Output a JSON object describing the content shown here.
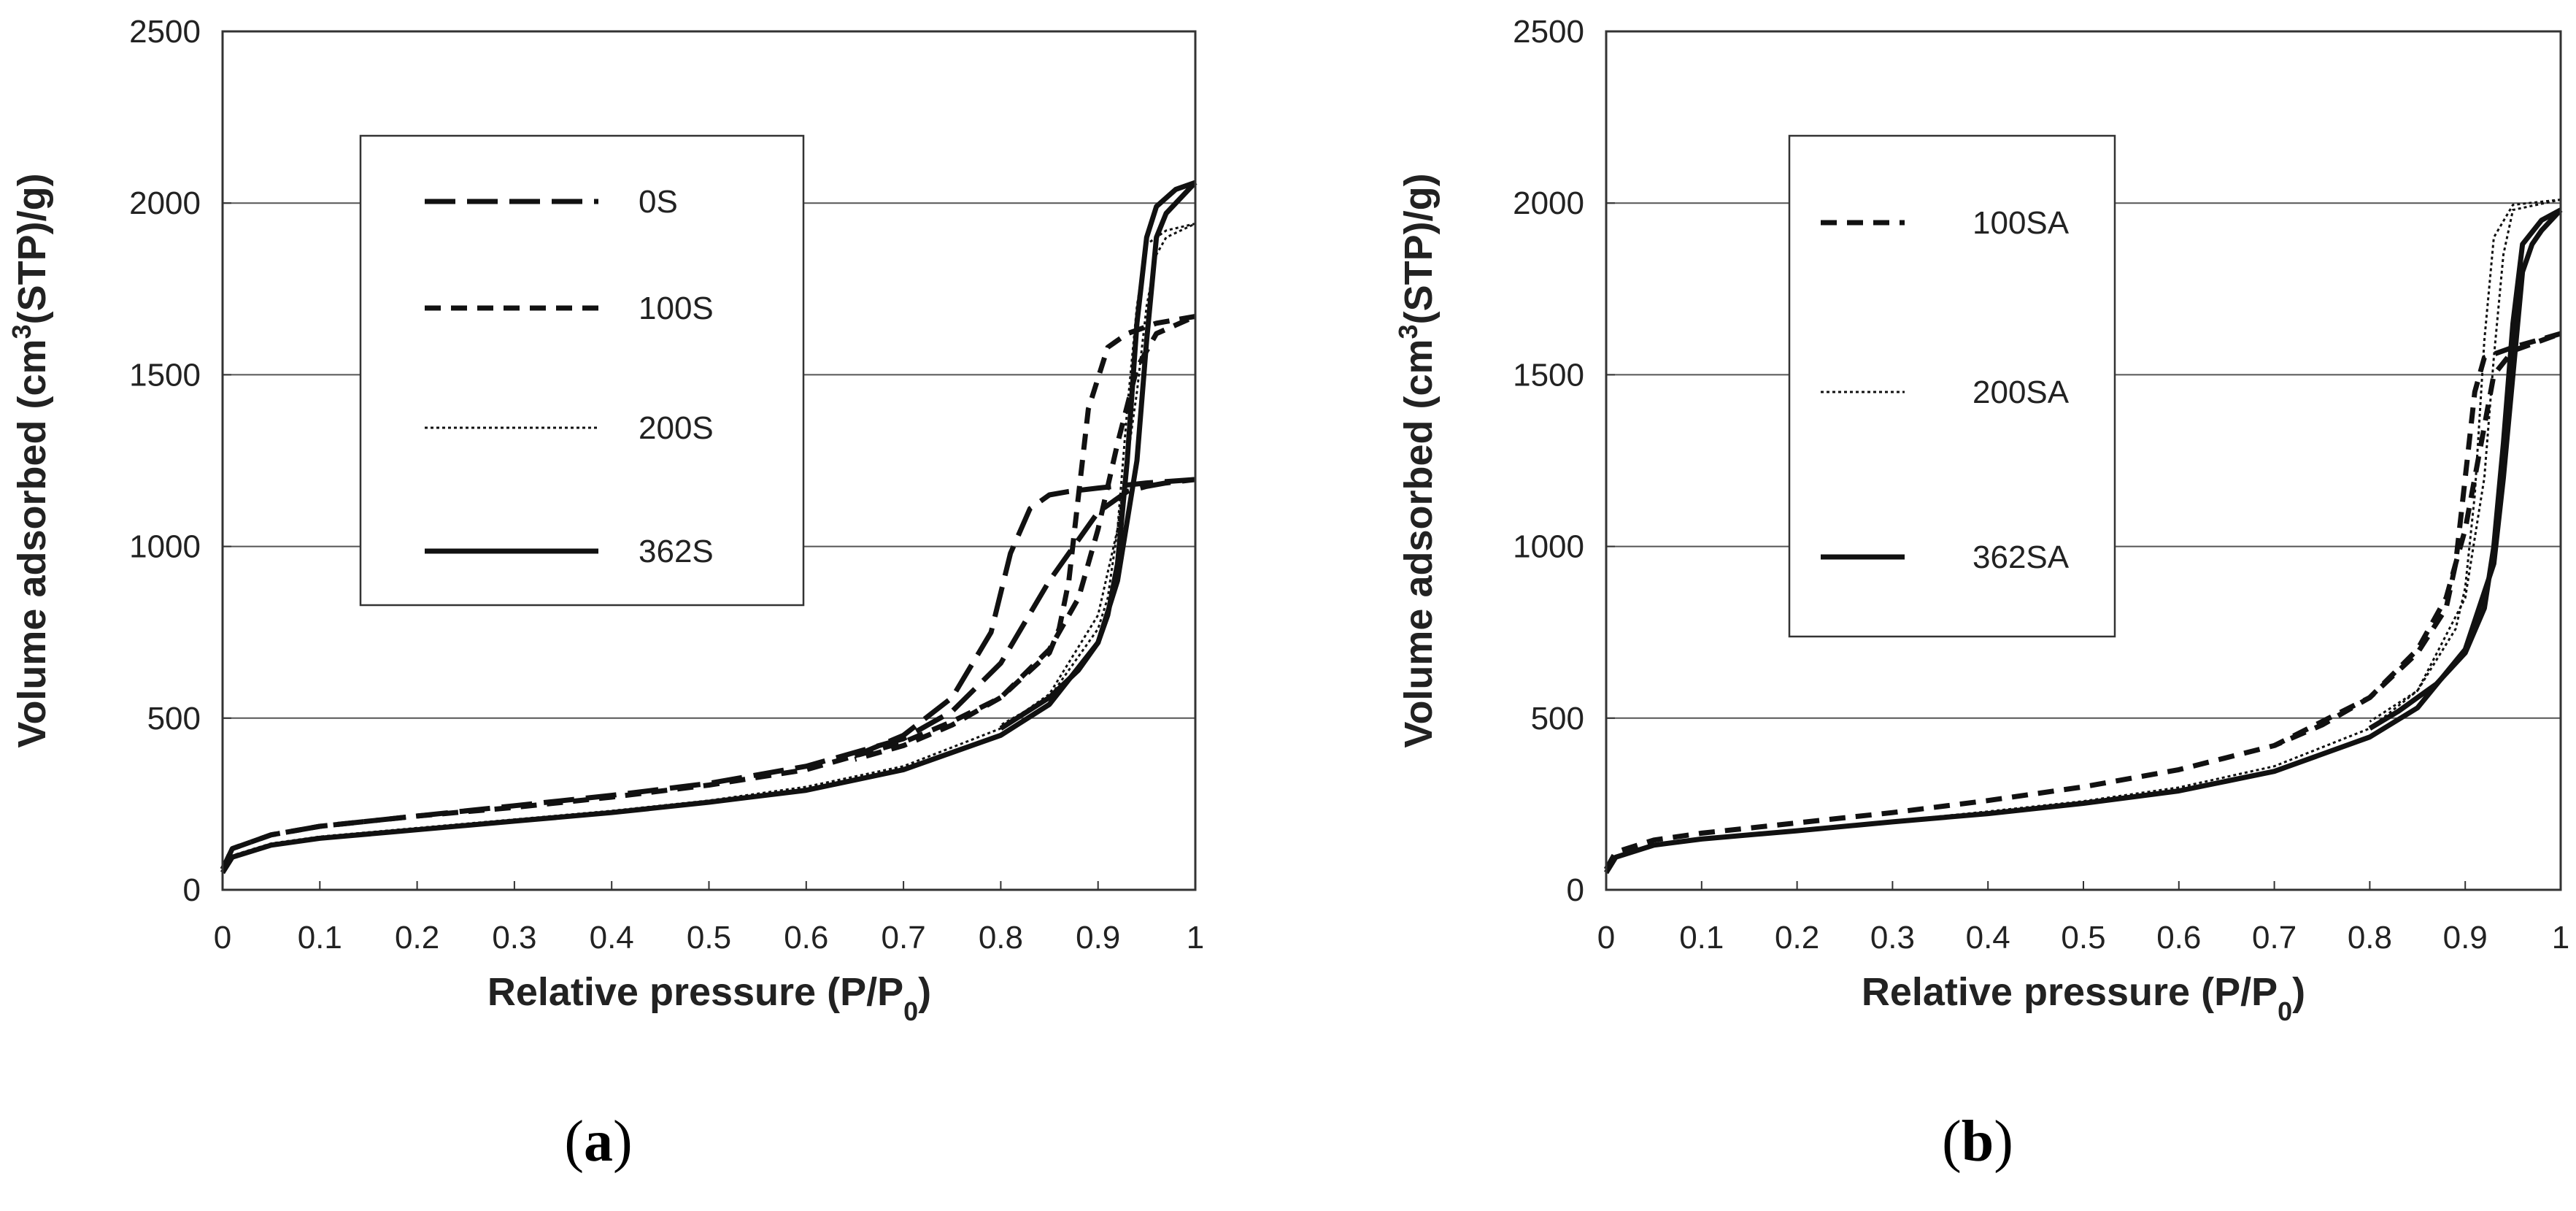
{
  "chart_data": [
    {
      "type": "line",
      "panel_label": "a",
      "xlabel": "Relative pressure (P/P0)",
      "ylabel": "Volume adsorbed (cm3(STP)/g)",
      "xlim": [
        0,
        1
      ],
      "ylim": [
        0,
        2500
      ],
      "xticks": [
        "0",
        "0.1",
        "0.2",
        "0.3",
        "0.4",
        "0.5",
        "0.6",
        "0.7",
        "0.8",
        "0.9",
        "1"
      ],
      "yticks": [
        "0",
        "500",
        "1000",
        "1500",
        "2000",
        "2500"
      ],
      "legend_position": "upper-left",
      "series": [
        {
          "name": "0S",
          "style": "long-dash",
          "adsorption": {
            "x": [
              0,
              0.01,
              0.05,
              0.1,
              0.2,
              0.3,
              0.4,
              0.5,
              0.6,
              0.7,
              0.75,
              0.8,
              0.85,
              0.9,
              0.93,
              0.95,
              0.97,
              1.0
            ],
            "y": [
              60,
              120,
              160,
              185,
              215,
              245,
              275,
              310,
              360,
              440,
              520,
              660,
              900,
              1100,
              1160,
              1175,
              1185,
              1195
            ]
          },
          "desorption": {
            "x": [
              1.0,
              0.95,
              0.9,
              0.87,
              0.85,
              0.83,
              0.81,
              0.79,
              0.75,
              0.7,
              0.65
            ],
            "y": [
              1195,
              1185,
              1170,
              1160,
              1150,
              1110,
              980,
              750,
              560,
              450,
              390
            ]
          }
        },
        {
          "name": "100S",
          "style": "dash",
          "adsorption": {
            "x": [
              0,
              0.01,
              0.05,
              0.1,
              0.2,
              0.3,
              0.4,
              0.5,
              0.6,
              0.7,
              0.75,
              0.8,
              0.85,
              0.88,
              0.9,
              0.92,
              0.94,
              0.96,
              1.0
            ],
            "y": [
              60,
              120,
              160,
              185,
              215,
              240,
              270,
              305,
              350,
              430,
              490,
              560,
              700,
              850,
              1050,
              1300,
              1520,
              1620,
              1670
            ]
          },
          "desorption": {
            "x": [
              1.0,
              0.96,
              0.93,
              0.91,
              0.89,
              0.88,
              0.87,
              0.86,
              0.85,
              0.8,
              0.75,
              0.7,
              0.65
            ],
            "y": [
              1670,
              1650,
              1620,
              1580,
              1400,
              1150,
              900,
              760,
              690,
              560,
              480,
              420,
              380
            ]
          }
        },
        {
          "name": "200S",
          "style": "dotted",
          "adsorption": {
            "x": [
              0,
              0.01,
              0.05,
              0.1,
              0.2,
              0.3,
              0.4,
              0.5,
              0.6,
              0.7,
              0.8,
              0.85,
              0.9,
              0.92,
              0.94,
              0.95,
              0.96,
              0.97,
              1.0
            ],
            "y": [
              50,
              100,
              135,
              155,
              180,
              205,
              230,
              260,
              300,
              360,
              470,
              570,
              800,
              1050,
              1450,
              1700,
              1850,
              1900,
              1940
            ]
          },
          "desorption": {
            "x": [
              1.0,
              0.97,
              0.95,
              0.94,
              0.93,
              0.92,
              0.91,
              0.9,
              0.85,
              0.8
            ],
            "y": [
              1940,
              1920,
              1880,
              1700,
              1400,
              1050,
              850,
              760,
              560,
              480
            ]
          }
        },
        {
          "name": "362S",
          "style": "solid",
          "adsorption": {
            "x": [
              0,
              0.01,
              0.05,
              0.1,
              0.2,
              0.3,
              0.4,
              0.5,
              0.6,
              0.7,
              0.8,
              0.85,
              0.9,
              0.92,
              0.94,
              0.95,
              0.96,
              0.97,
              0.98,
              1.0
            ],
            "y": [
              50,
              95,
              130,
              150,
              175,
              200,
              225,
              255,
              290,
              350,
              450,
              540,
              720,
              900,
              1250,
              1600,
              1900,
              1970,
              2000,
              2060
            ]
          },
          "desorption": {
            "x": [
              1.0,
              0.98,
              0.96,
              0.95,
              0.94,
              0.93,
              0.92,
              0.91,
              0.9,
              0.88,
              0.85,
              0.8
            ],
            "y": [
              2060,
              2040,
              1990,
              1900,
              1650,
              1250,
              950,
              800,
              720,
              640,
              560,
              470
            ]
          }
        }
      ]
    },
    {
      "type": "line",
      "panel_label": "b",
      "xlabel": "Relative pressure (P/P0)",
      "ylabel": "Volume adsorbed (cm3(STP)/g)",
      "xlim": [
        0,
        1
      ],
      "ylim": [
        0,
        2500
      ],
      "xticks": [
        "0",
        "0.1",
        "0.2",
        "0.3",
        "0.4",
        "0.5",
        "0.6",
        "0.7",
        "0.8",
        "0.9",
        "1"
      ],
      "yticks": [
        "0",
        "500",
        "1000",
        "1500",
        "2000",
        "2500"
      ],
      "legend_position": "upper-center",
      "series": [
        {
          "name": "100SA",
          "style": "dash",
          "adsorption": {
            "x": [
              0,
              0.01,
              0.05,
              0.1,
              0.2,
              0.3,
              0.4,
              0.5,
              0.6,
              0.7,
              0.8,
              0.85,
              0.88,
              0.9,
              0.92,
              0.93,
              0.95,
              1.0
            ],
            "y": [
              60,
              110,
              145,
              165,
              195,
              225,
              260,
              300,
              350,
              420,
              560,
              700,
              850,
              1050,
              1350,
              1500,
              1570,
              1620
            ]
          },
          "desorption": {
            "x": [
              1.0,
              0.95,
              0.92,
              0.91,
              0.9,
              0.89,
              0.88,
              0.85,
              0.8,
              0.75,
              0.7
            ],
            "y": [
              1620,
              1580,
              1550,
              1450,
              1200,
              950,
              820,
              690,
              560,
              480,
              420
            ]
          }
        },
        {
          "name": "200SA",
          "style": "dotted",
          "adsorption": {
            "x": [
              0,
              0.01,
              0.05,
              0.1,
              0.2,
              0.3,
              0.4,
              0.5,
              0.6,
              0.7,
              0.8,
              0.85,
              0.9,
              0.92,
              0.93,
              0.94,
              0.95,
              1.0
            ],
            "y": [
              50,
              95,
              130,
              150,
              175,
              200,
              228,
              258,
              298,
              360,
              470,
              580,
              850,
              1200,
              1550,
              1850,
              1980,
              2010
            ]
          },
          "desorption": {
            "x": [
              1.0,
              0.95,
              0.93,
              0.92,
              0.91,
              0.9,
              0.89,
              0.85,
              0.8
            ],
            "y": [
              2010,
              1995,
              1900,
              1600,
              1150,
              880,
              760,
              580,
              490
            ]
          }
        },
        {
          "name": "362SA",
          "style": "solid",
          "adsorption": {
            "x": [
              0,
              0.01,
              0.05,
              0.1,
              0.2,
              0.3,
              0.4,
              0.5,
              0.6,
              0.7,
              0.8,
              0.85,
              0.9,
              0.93,
              0.94,
              0.95,
              0.96,
              0.97,
              0.98,
              1.0
            ],
            "y": [
              50,
              95,
              130,
              148,
              172,
              198,
              222,
              252,
              288,
              345,
              445,
              530,
              700,
              950,
              1200,
              1500,
              1800,
              1880,
              1920,
              1980
            ]
          },
          "desorption": {
            "x": [
              1.0,
              0.98,
              0.96,
              0.95,
              0.94,
              0.93,
              0.92,
              0.9,
              0.87,
              0.83,
              0.8
            ],
            "y": [
              1980,
              1950,
              1880,
              1650,
              1300,
              1000,
              820,
              690,
              600,
              520,
              470
            ]
          }
        }
      ]
    }
  ]
}
